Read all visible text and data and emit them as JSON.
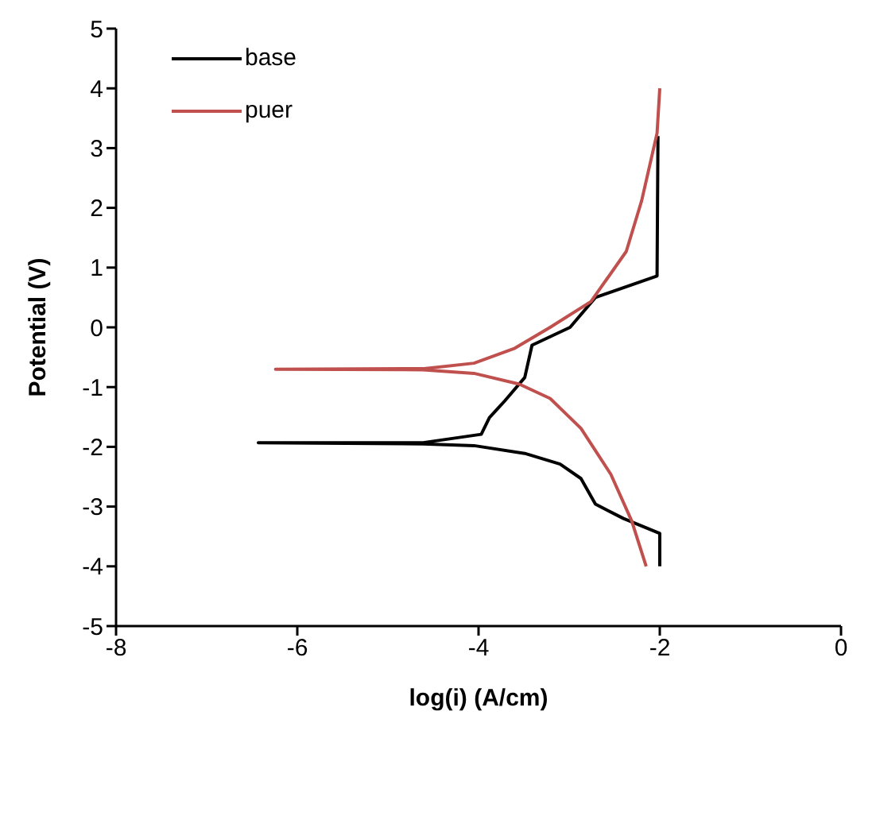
{
  "chart_data": {
    "type": "line",
    "xlabel": "log(i) (A/cm)",
    "ylabel": "Potential (V)",
    "xlim": [
      -8,
      0
    ],
    "xticks": [
      -8,
      -6,
      -4,
      -2,
      0
    ],
    "ylim": [
      -5,
      5
    ],
    "yticks": [
      -5,
      -4,
      -3,
      -2,
      -1,
      0,
      1,
      2,
      3,
      4,
      5
    ],
    "legend": "top left",
    "marker": "none",
    "line_style": "solid",
    "series": [
      {
        "name": "base",
        "color": "#000000",
        "x": [
          -2.0,
          -2.0,
          -2.4,
          -2.71,
          -2.87,
          -3.1,
          -3.49,
          -4.05,
          -4.61,
          -6.43,
          -4.61,
          -3.97,
          -3.88,
          -3.71,
          -3.49,
          -3.41,
          -2.99,
          -2.71,
          -2.03,
          -2.02
        ],
        "values": [
          -4.0,
          -3.45,
          -3.2,
          -2.96,
          -2.53,
          -2.29,
          -2.11,
          -1.98,
          -1.95,
          -1.93,
          -1.93,
          -1.79,
          -1.51,
          -1.23,
          -0.84,
          -0.3,
          0.0,
          0.5,
          0.86,
          3.2
        ]
      },
      {
        "name": "puer",
        "color": "#c0504d",
        "x": [
          -2.15,
          -2.31,
          -2.54,
          -2.87,
          -3.21,
          -3.55,
          -4.05,
          -4.61,
          -6.24,
          -4.6,
          -4.05,
          -3.6,
          -3.21,
          -2.76,
          -2.37,
          -2.2,
          -2.03,
          -2.0
        ],
        "values": [
          -4.0,
          -3.24,
          -2.46,
          -1.69,
          -1.19,
          -0.95,
          -0.77,
          -0.71,
          -0.7,
          -0.69,
          -0.6,
          -0.35,
          0.0,
          0.43,
          1.27,
          2.12,
          3.25,
          4.0
        ]
      }
    ]
  }
}
